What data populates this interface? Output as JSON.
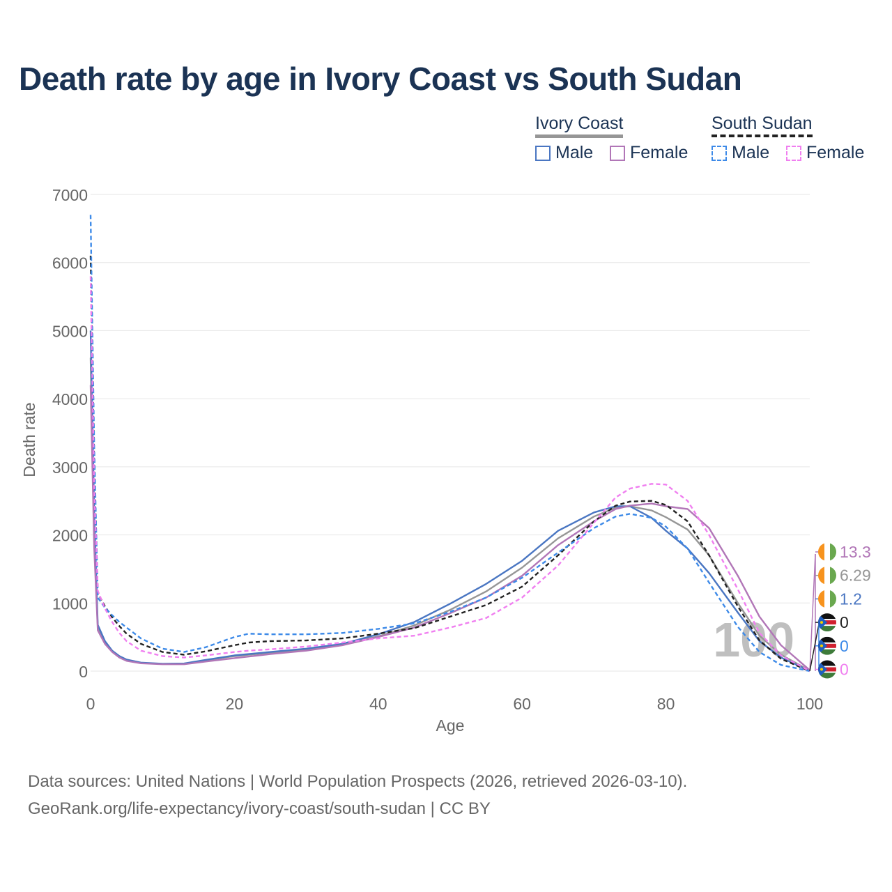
{
  "title": "Death rate by age in Ivory Coast vs South Sudan",
  "legend": {
    "groups": [
      {
        "label": "Ivory Coast",
        "male": "Male",
        "female": "Female"
      },
      {
        "label": "South Sudan",
        "male": "Male",
        "female": "Female"
      }
    ]
  },
  "colors": {
    "ic_total": "#969696",
    "ic_male": "#4a76c2",
    "ic_female": "#b176b7",
    "ss_total": "#222222",
    "ss_male": "#3d8ae8",
    "ss_female": "#f07ff0",
    "title": "#1b3354",
    "axis_text": "#666666",
    "year_watermark": "#b9b9b9"
  },
  "year_label": "100",
  "end_labels": [
    {
      "country": "Ivory Coast",
      "series": "Female",
      "value": "13.3",
      "color": "#b176b7"
    },
    {
      "country": "Ivory Coast",
      "series": "Total",
      "value": "6.29",
      "color": "#969696"
    },
    {
      "country": "Ivory Coast",
      "series": "Male",
      "value": "1.2",
      "color": "#4a76c2"
    },
    {
      "country": "South Sudan",
      "series": "Total",
      "value": "0",
      "color": "#222222"
    },
    {
      "country": "South Sudan",
      "series": "Male",
      "value": "0",
      "color": "#3d8ae8"
    },
    {
      "country": "South Sudan",
      "series": "Female",
      "value": "0",
      "color": "#f07ff0"
    }
  ],
  "footer": {
    "line1": "Data sources: United Nations | World Population Prospects (2026, retrieved 2026-03-10).",
    "line2": "GeoRank.org/life-expectancy/ivory-coast/south-sudan | CC BY"
  },
  "chart_data": {
    "type": "line",
    "title": "Death rate by age in Ivory Coast vs South Sudan",
    "xlabel": "Age",
    "ylabel": "Death rate",
    "xlim": [
      0,
      100
    ],
    "ylim": [
      0,
      7000
    ],
    "xticks": [
      0,
      20,
      40,
      60,
      80,
      100
    ],
    "yticks": [
      0,
      1000,
      2000,
      3000,
      4000,
      5000,
      6000,
      7000
    ],
    "grid": true,
    "series": [
      {
        "key": "ic_total",
        "name": "Ivory Coast",
        "dashed": false,
        "x": [
          0,
          0.5,
          1,
          2,
          3,
          4,
          5,
          7,
          10,
          13,
          16,
          20,
          25,
          30,
          35,
          40,
          45,
          50,
          55,
          60,
          65,
          70,
          73,
          75,
          78,
          80,
          83,
          86,
          90,
          93,
          96,
          100
        ],
        "y": [
          4600,
          2000,
          640,
          420,
          290,
          210,
          160,
          120,
          105,
          110,
          160,
          220,
          270,
          320,
          390,
          510,
          670,
          900,
          1170,
          1520,
          1950,
          2270,
          2400,
          2420,
          2360,
          2260,
          2080,
          1700,
          1000,
          520,
          240,
          6
        ]
      },
      {
        "key": "ic_male",
        "name": "Ivory Coast Male",
        "dashed": false,
        "x": [
          0,
          0.5,
          1,
          2,
          3,
          4,
          5,
          7,
          10,
          13,
          16,
          20,
          25,
          30,
          35,
          40,
          45,
          50,
          55,
          60,
          65,
          70,
          73,
          75,
          78,
          80,
          83,
          86,
          90,
          93,
          96,
          100
        ],
        "y": [
          5000,
          2300,
          680,
          440,
          300,
          220,
          170,
          125,
          108,
          112,
          165,
          230,
          280,
          330,
          400,
          540,
          720,
          990,
          1280,
          1620,
          2060,
          2330,
          2420,
          2420,
          2250,
          2060,
          1800,
          1440,
          860,
          440,
          200,
          1
        ]
      },
      {
        "key": "ic_female",
        "name": "Ivory Coast Female",
        "dashed": false,
        "x": [
          0,
          0.5,
          1,
          2,
          3,
          4,
          5,
          7,
          10,
          13,
          16,
          20,
          25,
          30,
          35,
          40,
          45,
          50,
          55,
          60,
          65,
          70,
          73,
          75,
          78,
          80,
          83,
          86,
          90,
          93,
          96,
          100
        ],
        "y": [
          4200,
          1800,
          600,
          400,
          280,
          200,
          150,
          115,
          100,
          100,
          140,
          190,
          250,
          300,
          380,
          500,
          640,
          850,
          1080,
          1400,
          1850,
          2200,
          2380,
          2430,
          2460,
          2420,
          2380,
          2100,
          1400,
          800,
          380,
          13
        ]
      },
      {
        "key": "ss_total",
        "name": "South Sudan",
        "dashed": true,
        "x": [
          0,
          0.5,
          1,
          2,
          3,
          4,
          5,
          7,
          10,
          13,
          16,
          20,
          22,
          25,
          30,
          35,
          40,
          45,
          50,
          55,
          60,
          65,
          70,
          73,
          75,
          78,
          80,
          83,
          86,
          90,
          93,
          96,
          100
        ],
        "y": [
          6100,
          3000,
          1150,
          950,
          790,
          660,
          550,
          400,
          280,
          240,
          290,
          380,
          420,
          440,
          450,
          480,
          550,
          630,
          800,
          970,
          1240,
          1700,
          2200,
          2430,
          2490,
          2500,
          2440,
          2200,
          1700,
          950,
          450,
          180,
          0
        ]
      },
      {
        "key": "ss_male",
        "name": "South Sudan Male",
        "dashed": true,
        "x": [
          0,
          0.5,
          1,
          2,
          3,
          4,
          5,
          7,
          10,
          13,
          16,
          20,
          22,
          25,
          30,
          35,
          40,
          45,
          50,
          55,
          60,
          65,
          70,
          73,
          75,
          78,
          80,
          83,
          86,
          90,
          93,
          96,
          100
        ],
        "y": [
          6700,
          3300,
          1080,
          930,
          820,
          720,
          640,
          480,
          330,
          280,
          350,
          500,
          550,
          540,
          540,
          560,
          620,
          700,
          870,
          1080,
          1370,
          1740,
          2100,
          2270,
          2310,
          2250,
          2120,
          1800,
          1300,
          650,
          280,
          90,
          0
        ]
      },
      {
        "key": "ss_female",
        "name": "South Sudan Female",
        "dashed": true,
        "x": [
          0,
          0.5,
          1,
          2,
          3,
          4,
          5,
          7,
          10,
          13,
          16,
          20,
          22,
          25,
          30,
          35,
          40,
          45,
          50,
          55,
          60,
          65,
          70,
          73,
          75,
          78,
          80,
          83,
          86,
          90,
          93,
          96,
          100
        ],
        "y": [
          5800,
          2700,
          1180,
          920,
          720,
          560,
          440,
          300,
          220,
          200,
          230,
          280,
          300,
          320,
          360,
          420,
          480,
          520,
          640,
          780,
          1080,
          1550,
          2180,
          2550,
          2680,
          2750,
          2740,
          2500,
          2000,
          1200,
          560,
          230,
          0
        ]
      }
    ]
  }
}
